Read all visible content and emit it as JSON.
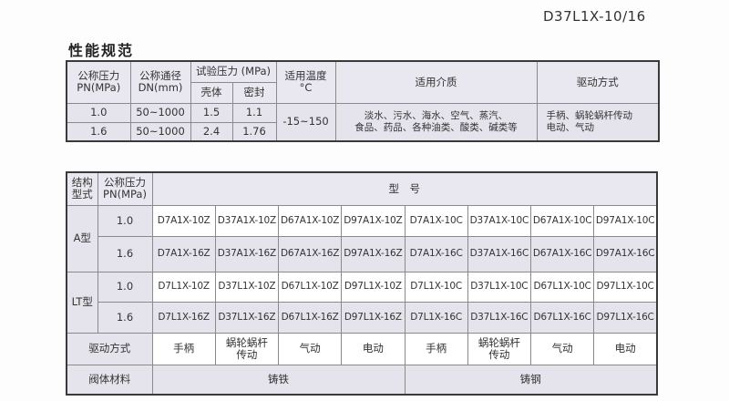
{
  "doc_code": "D37L1X-10/16",
  "section_title": "性能规范",
  "spec_table": {
    "headers": {
      "pn": "公称压力\nPN(MPa)",
      "dn": "公称通径\nDN(mm)",
      "test_pressure": "试验压力 (MPa)",
      "shell": "壳体",
      "seal": "密封",
      "temp": "适用温度\n°C",
      "medium": "适用介质",
      "drive": "驱动方式"
    },
    "rows": [
      {
        "pn": "1.0",
        "dn": "50~1000",
        "shell": "1.5",
        "seal": "1.1"
      },
      {
        "pn": "1.6",
        "dn": "50~1000",
        "shell": "2.4",
        "seal": "1.76"
      }
    ],
    "temp": "-15~150",
    "medium": "淡水、污水、海水、空气、蒸汽、\n食品、药品、各种油类、酸类、碱类等",
    "drive": "手柄、蜗轮蜗杆传动\n电动、气动"
  },
  "model_table": {
    "headers": {
      "structure": "结构\n型式",
      "pn": "公称压力\nPN(MPa)",
      "model": "型　号"
    },
    "groups": [
      {
        "label": "A型",
        "rows": [
          {
            "pn": "1.0",
            "models": [
              "D7A1X-10Z",
              "D37A1X-10Z",
              "D67A1X-10Z",
              "D97A1X-10Z",
              "D7A1X-10C",
              "D37A1X-10C",
              "D67A1X-10C",
              "D97A1X-10C"
            ]
          },
          {
            "pn": "1.6",
            "models": [
              "D7A1X-16Z",
              "D37A1X-16Z",
              "D67A1X-16Z",
              "D97A1X-16Z",
              "D7A1X-16C",
              "D37A1X-16C",
              "D67A1X-16C",
              "D97A1X-16C"
            ]
          }
        ]
      },
      {
        "label": "LT型",
        "rows": [
          {
            "pn": "1.0",
            "models": [
              "D7L1X-10Z",
              "D37L1X-10Z",
              "D67L1X-10Z",
              "D97L1X-10Z",
              "D7L1X-10C",
              "D37L1X-10C",
              "D67L1X-10C",
              "D97L1X-10C"
            ]
          },
          {
            "pn": "1.6",
            "models": [
              "D7L1X-16Z",
              "D37L1X-16Z",
              "D67L1X-16Z",
              "D97L1X-16Z",
              "D7L1X-16C",
              "D37L1X-16C",
              "D67L1X-16C",
              "D97L1X-16C"
            ]
          }
        ]
      }
    ],
    "drive_label": "驱动方式",
    "drives": [
      "手柄",
      "蜗轮蜗杆\n传动",
      "气动",
      "电动",
      "手柄",
      "蜗轮蜗杆\n传动",
      "气动",
      "电动"
    ],
    "material_label": "阀体材料",
    "materials": [
      "铸铁",
      "铸钢"
    ]
  },
  "colors": {
    "shade": "#e5e4ec",
    "border": "#3a3a3a"
  }
}
